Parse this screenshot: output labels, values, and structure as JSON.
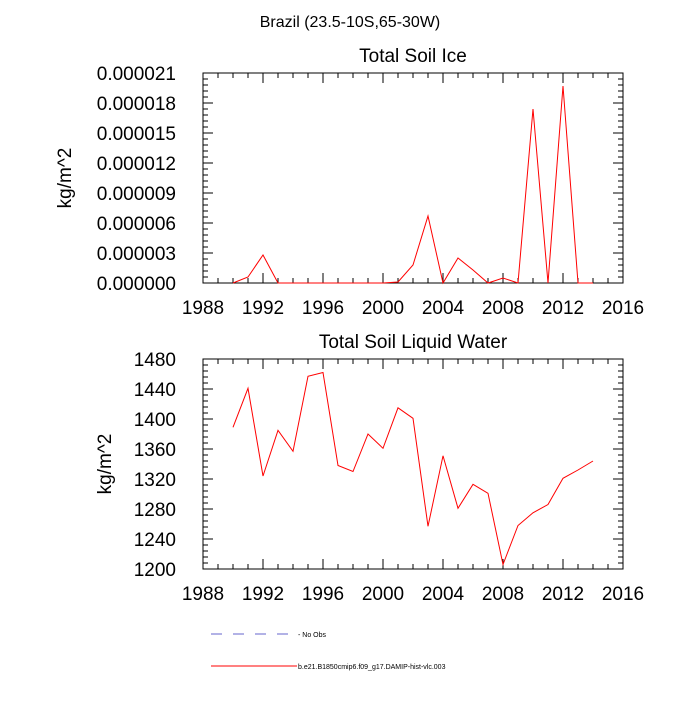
{
  "figure_title": "Brazil (23.5-10S,65-30W)",
  "colors": {
    "model_line": "#ff0000",
    "obs_line": "#6666cc",
    "axis": "#000000",
    "background": "#ffffff"
  },
  "legend": {
    "entries": [
      {
        "label": "No Obs",
        "style": "dashed",
        "color": "#6666cc"
      },
      {
        "label": "b.e21.B1850cmip6.f09_g17.DAMIP-hist-vlc.003",
        "style": "solid",
        "color": "#ff0000"
      }
    ]
  },
  "chart_data": [
    {
      "type": "line",
      "title": "Total Soil Ice",
      "xlabel": "",
      "ylabel": "kg/m^2",
      "xlim": [
        1988,
        2016
      ],
      "ylim": [
        0,
        2.1e-05
      ],
      "xticks": [
        1988,
        1992,
        1996,
        2000,
        2004,
        2008,
        2012,
        2016
      ],
      "yticks": [
        0,
        3e-06,
        6e-06,
        9e-06,
        1.2e-05,
        1.5e-05,
        1.8e-05,
        2.1e-05
      ],
      "ytick_labels": [
        "0.000000",
        "0.000003",
        "0.000006",
        "0.000009",
        "0.000012",
        "0.000015",
        "0.000018",
        "0.000021"
      ],
      "series": [
        {
          "name": "b.e21.B1850cmip6.f09_g17.DAMIP-hist-vlc.003",
          "x": [
            1990,
            1991,
            1992,
            1993,
            1994,
            1995,
            1996,
            1997,
            1998,
            1999,
            2000,
            2001,
            2002,
            2003,
            2004,
            2005,
            2006,
            2007,
            2008,
            2009,
            2010,
            2011,
            2012,
            2013,
            2014
          ],
          "y": [
            0,
            6e-07,
            2.8e-06,
            0,
            0,
            0,
            0,
            0,
            0,
            0,
            0,
            1e-07,
            1.8e-06,
            6.7e-06,
            0,
            2.5e-06,
            1.3e-06,
            0,
            5e-07,
            0,
            1.74e-05,
            0,
            1.97e-05,
            0,
            0
          ]
        }
      ]
    },
    {
      "type": "line",
      "title": "Total Soil Liquid Water",
      "xlabel": "",
      "ylabel": "kg/m^2",
      "xlim": [
        1988,
        2016
      ],
      "ylim": [
        1200,
        1480
      ],
      "xticks": [
        1988,
        1992,
        1996,
        2000,
        2004,
        2008,
        2012,
        2016
      ],
      "yticks": [
        1200,
        1240,
        1280,
        1320,
        1360,
        1400,
        1440,
        1480
      ],
      "ytick_labels": [
        "1200",
        "1240",
        "1280",
        "1320",
        "1360",
        "1400",
        "1440",
        "1480"
      ],
      "series": [
        {
          "name": "b.e21.B1850cmip6.f09_g17.DAMIP-hist-vlc.003",
          "x": [
            1990,
            1991,
            1992,
            1993,
            1994,
            1995,
            1996,
            1997,
            1998,
            1999,
            2000,
            2001,
            2002,
            2003,
            2004,
            2005,
            2006,
            2007,
            2008,
            2009,
            2010,
            2011,
            2012,
            2013,
            2014
          ],
          "y": [
            1389,
            1441,
            1324,
            1385,
            1357,
            1457,
            1462,
            1338,
            1330,
            1380,
            1361,
            1415,
            1401,
            1257,
            1351,
            1281,
            1313,
            1301,
            1206,
            1258,
            1275,
            1286,
            1321,
            1332,
            1344
          ]
        }
      ]
    }
  ]
}
